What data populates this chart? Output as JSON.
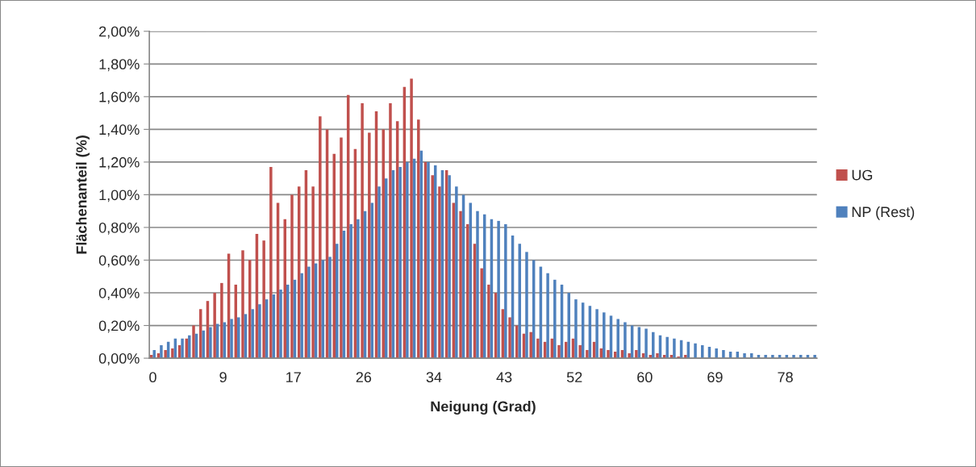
{
  "chart_data": {
    "type": "bar",
    "xlabel": "Neigung (Grad)",
    "ylabel": "Flächenanteil (%)",
    "categories": [
      "0",
      null,
      null,
      null,
      null,
      null,
      null,
      null,
      null,
      null,
      "9",
      null,
      null,
      null,
      null,
      null,
      null,
      null,
      null,
      null,
      "17",
      null,
      null,
      null,
      null,
      null,
      null,
      null,
      null,
      null,
      "26",
      null,
      null,
      null,
      null,
      null,
      null,
      null,
      null,
      null,
      "34",
      null,
      null,
      null,
      null,
      null,
      null,
      null,
      null,
      null,
      "43",
      null,
      null,
      null,
      null,
      null,
      null,
      null,
      null,
      null,
      "52",
      null,
      null,
      null,
      null,
      null,
      null,
      null,
      null,
      null,
      "60",
      null,
      null,
      null,
      null,
      null,
      null,
      null,
      null,
      null,
      "69",
      null,
      null,
      null,
      null,
      null,
      null,
      null,
      null,
      null,
      "78",
      null,
      null,
      null,
      null
    ],
    "series": [
      {
        "name": "UG",
        "color": "#c0504d",
        "values": [
          0.02,
          0.03,
          0.05,
          0.06,
          0.08,
          0.12,
          0.2,
          0.3,
          0.35,
          0.4,
          0.46,
          0.64,
          0.45,
          0.66,
          0.6,
          0.76,
          0.72,
          1.17,
          0.95,
          0.85,
          1.0,
          1.05,
          1.15,
          1.05,
          1.48,
          1.4,
          1.25,
          1.35,
          1.61,
          1.28,
          1.56,
          1.38,
          1.51,
          1.4,
          1.56,
          1.45,
          1.66,
          1.71,
          1.46,
          1.2,
          1.12,
          1.05,
          1.15,
          0.95,
          0.9,
          0.82,
          0.7,
          0.55,
          0.45,
          0.4,
          0.3,
          0.25,
          0.2,
          0.15,
          0.16,
          0.12,
          0.1,
          0.12,
          0.08,
          0.1,
          0.12,
          0.08,
          0.05,
          0.1,
          0.06,
          0.05,
          0.04,
          0.05,
          0.03,
          0.05,
          0.03,
          0.02,
          0.03,
          0.02,
          0.02,
          0.01,
          0.02,
          0,
          0,
          0,
          0,
          0,
          0,
          0,
          0,
          0,
          0,
          0,
          0,
          0,
          0,
          0,
          0,
          0,
          0
        ]
      },
      {
        "name": "NP (Rest)",
        "color": "#4f81bd",
        "values": [
          0.05,
          0.08,
          0.1,
          0.12,
          0.12,
          0.14,
          0.15,
          0.17,
          0.19,
          0.21,
          0.22,
          0.24,
          0.25,
          0.27,
          0.3,
          0.33,
          0.36,
          0.39,
          0.42,
          0.45,
          0.48,
          0.52,
          0.56,
          0.58,
          0.6,
          0.62,
          0.7,
          0.78,
          0.82,
          0.85,
          0.9,
          0.95,
          1.05,
          1.1,
          1.15,
          1.17,
          1.2,
          1.22,
          1.27,
          1.2,
          1.18,
          1.15,
          1.12,
          1.05,
          1.0,
          0.95,
          0.9,
          0.88,
          0.85,
          0.84,
          0.82,
          0.75,
          0.7,
          0.65,
          0.6,
          0.56,
          0.52,
          0.48,
          0.45,
          0.4,
          0.36,
          0.34,
          0.32,
          0.3,
          0.28,
          0.26,
          0.24,
          0.22,
          0.2,
          0.19,
          0.18,
          0.16,
          0.14,
          0.13,
          0.12,
          0.11,
          0.1,
          0.09,
          0.08,
          0.07,
          0.06,
          0.05,
          0.04,
          0.04,
          0.03,
          0.03,
          0.02,
          0.02,
          0.02,
          0.02,
          0.02,
          0.02,
          0.02,
          0.02,
          0.02
        ]
      }
    ],
    "ylim": [
      0,
      2
    ],
    "yticks": [
      {
        "value": 0,
        "label": "0,00%"
      },
      {
        "value": 0.2,
        "label": "0,20%"
      },
      {
        "value": 0.4,
        "label": "0,40%"
      },
      {
        "value": 0.6,
        "label": "0,60%"
      },
      {
        "value": 0.8,
        "label": "0,80%"
      },
      {
        "value": 1.0,
        "label": "1,00%"
      },
      {
        "value": 1.2,
        "label": "1,20%"
      },
      {
        "value": 1.4,
        "label": "1,40%"
      },
      {
        "value": 1.6,
        "label": "1,60%"
      },
      {
        "value": 1.8,
        "label": "1,80%"
      },
      {
        "value": 2.0,
        "label": "2,00%"
      }
    ],
    "grid": "y",
    "legend": "right"
  }
}
